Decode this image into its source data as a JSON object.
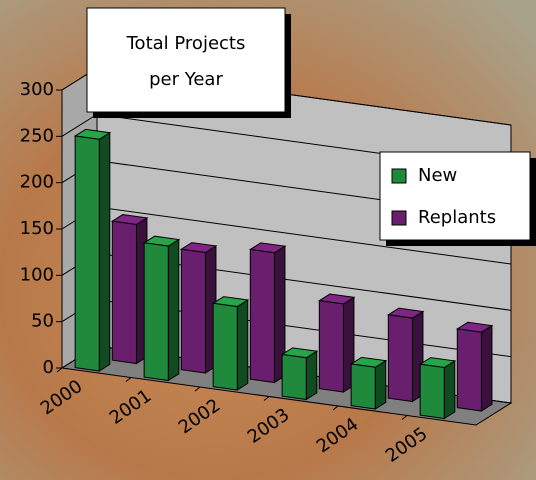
{
  "chart_data": {
    "type": "bar3d",
    "title": "Total Projects per Year",
    "categories": [
      "2000",
      "2001",
      "2002",
      "2003",
      "2004",
      "2005"
    ],
    "series": [
      {
        "name": "New",
        "color": "#1f8a3c",
        "values": [
          250,
          145,
          90,
          45,
          45,
          55
        ]
      },
      {
        "name": "Replants",
        "color": "#6a1f6e",
        "values": [
          150,
          130,
          140,
          95,
          90,
          85
        ]
      }
    ],
    "ylim": [
      0,
      300
    ],
    "yticks": [
      0,
      50,
      100,
      150,
      200,
      250,
      300
    ],
    "grid": true
  }
}
